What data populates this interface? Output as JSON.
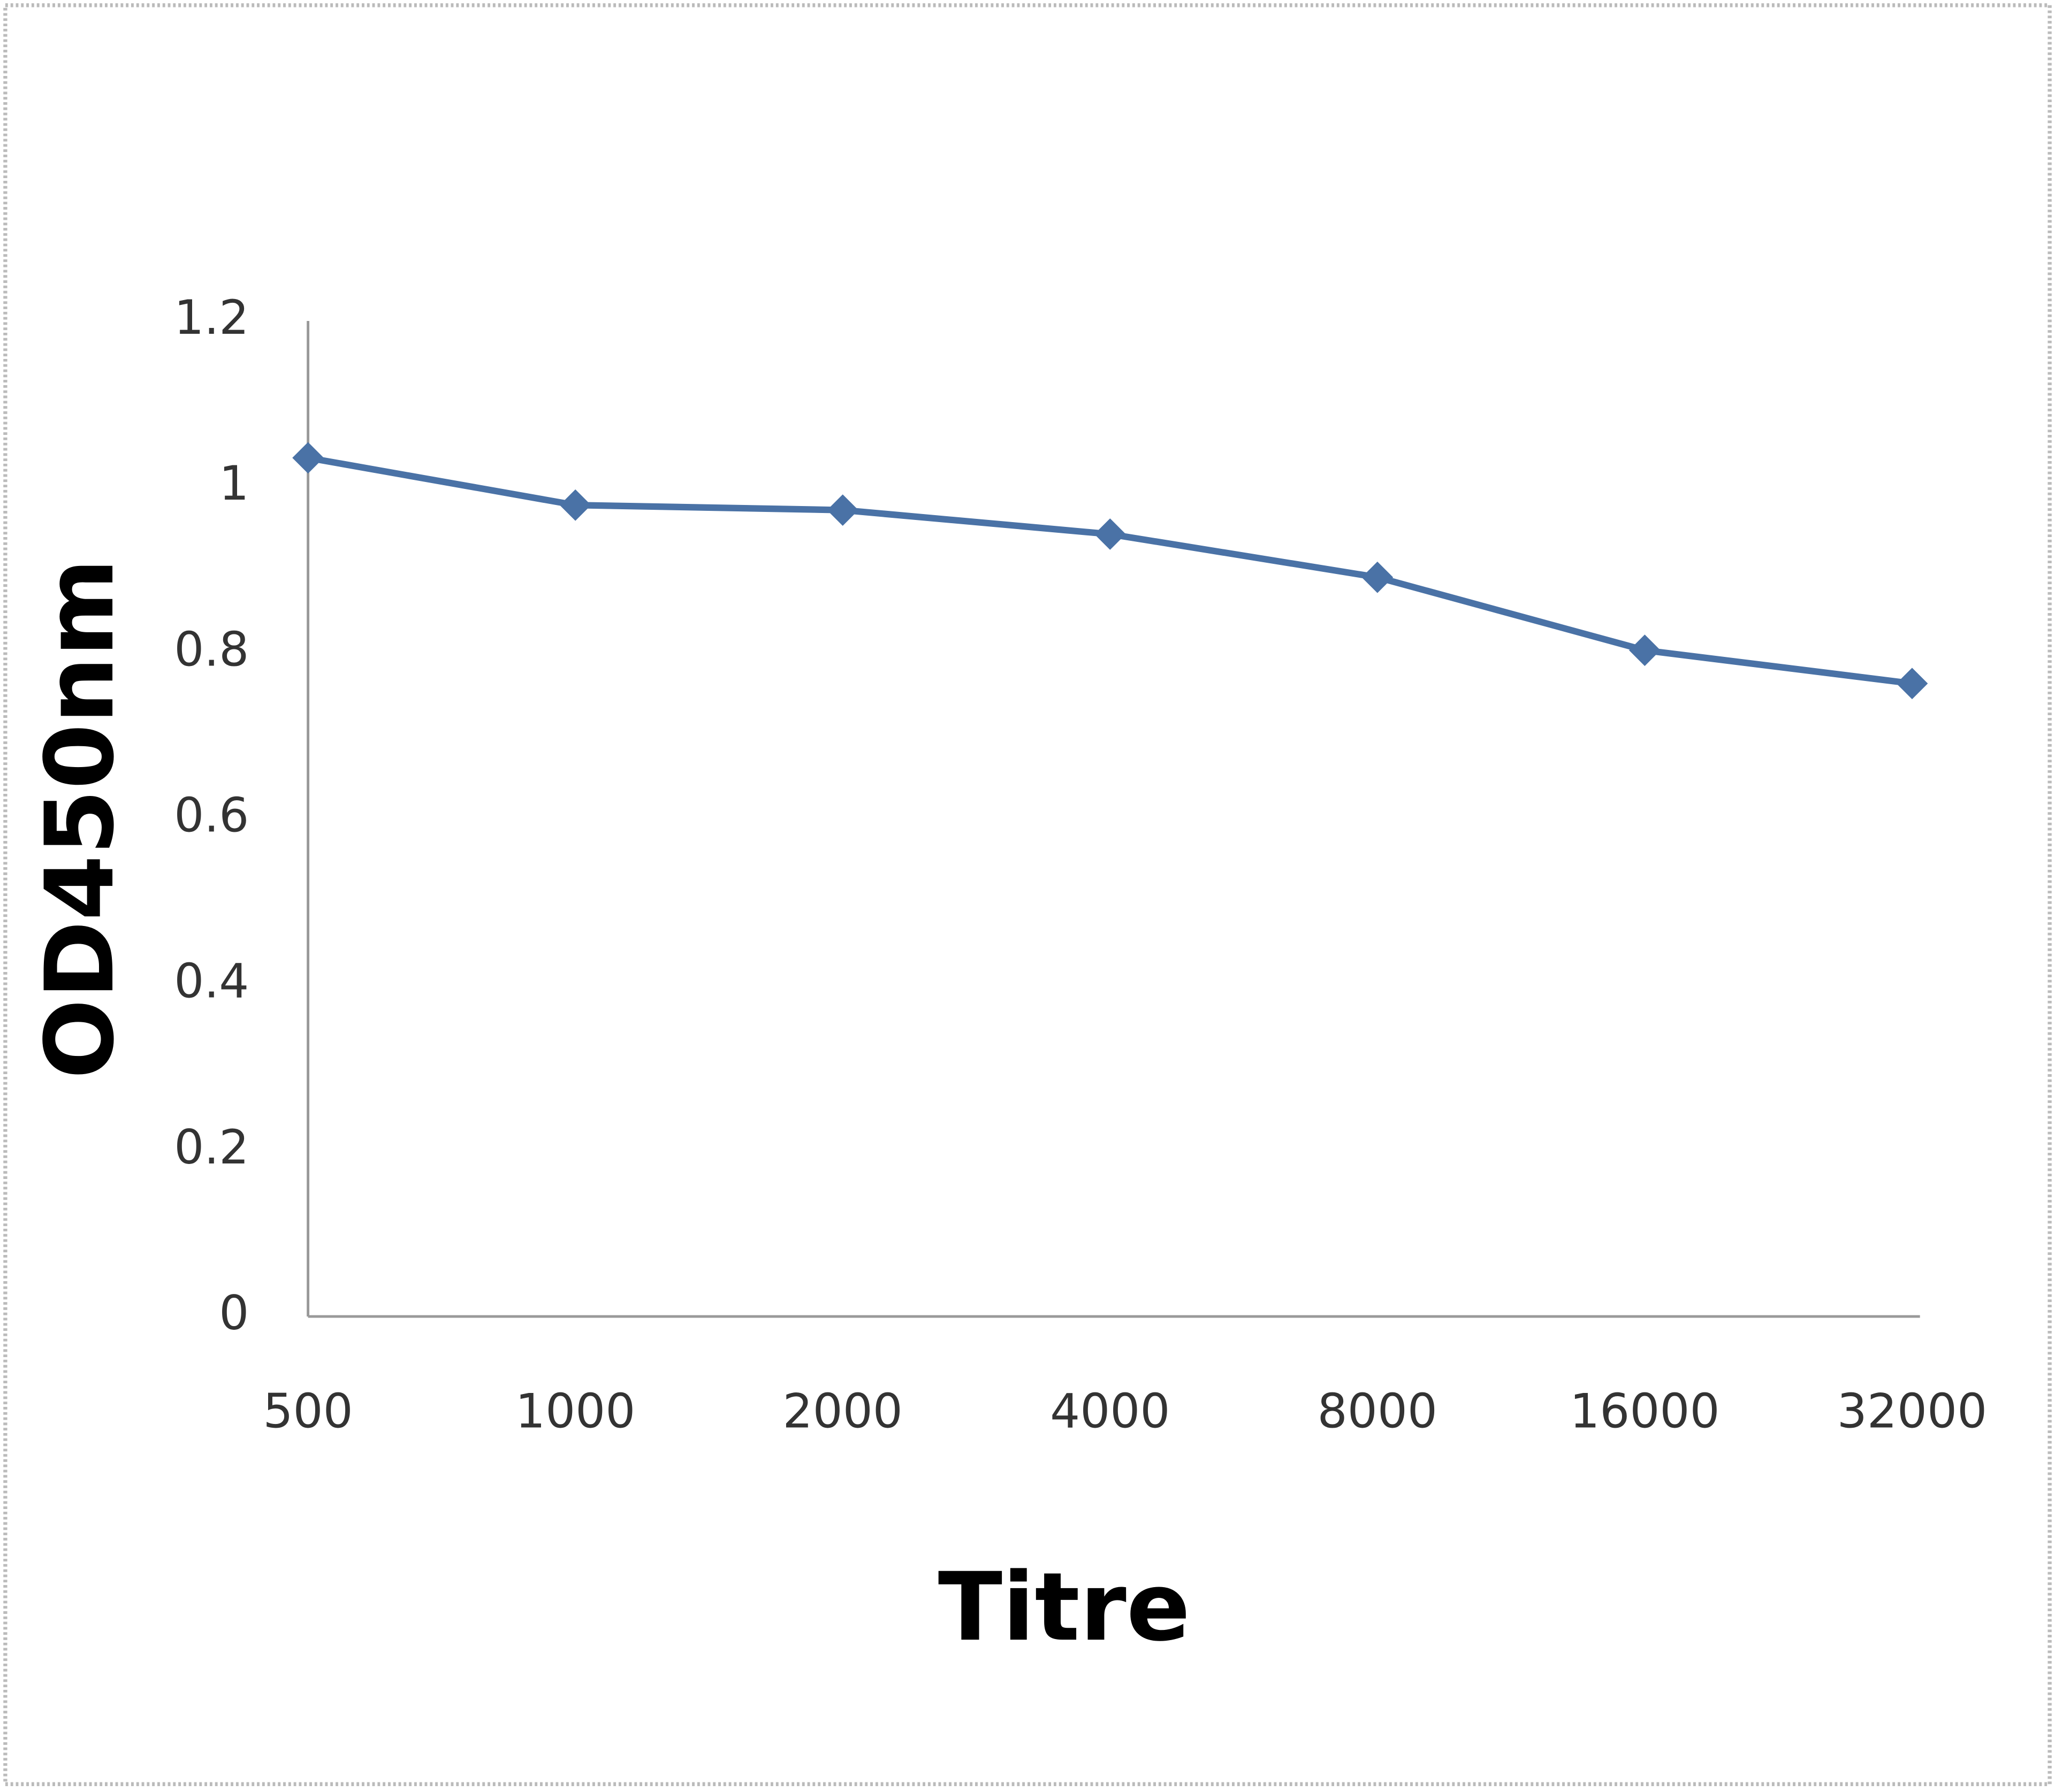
{
  "chart_data": {
    "type": "line",
    "categories": [
      "500",
      "1000",
      "2000",
      "4000",
      "8000",
      "16000",
      "32000"
    ],
    "series": [
      {
        "name": "OD450nm",
        "color": "#4a72a6",
        "values": [
          1.035,
          0.978,
          0.972,
          0.943,
          0.891,
          0.803,
          0.763
        ]
      }
    ],
    "ylim": [
      0,
      1.2
    ],
    "yticks": [
      0,
      0.2,
      0.4,
      0.6,
      0.8,
      1,
      1.2
    ],
    "grid": false,
    "x_label": "Titre",
    "y_label": "OD450nm"
  }
}
